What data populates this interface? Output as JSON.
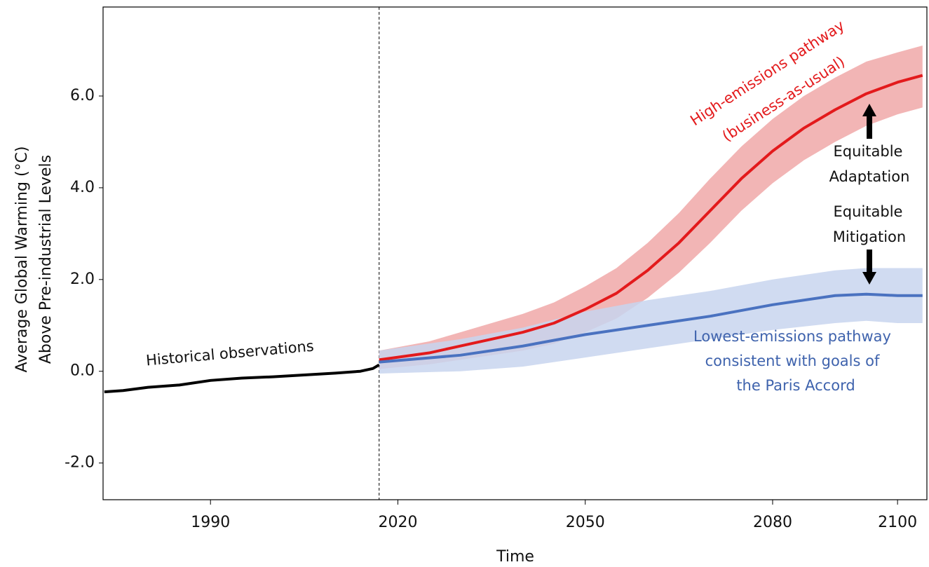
{
  "chart_data": {
    "type": "line",
    "xlabel": "Time",
    "ylabel": [
      "Average Global Warming (°C)",
      "Above Pre-industrial Levels"
    ],
    "xlim": [
      1972.8,
      2104.7
    ],
    "ylim": [
      -2.8,
      7.94
    ],
    "xticks": [
      1990,
      2020,
      2050,
      2080,
      2100
    ],
    "yticks": [
      {
        "value": -2,
        "label": "-2.0"
      },
      {
        "value": 0,
        "label": "0.0"
      },
      {
        "value": 2,
        "label": "2.0"
      },
      {
        "value": 4,
        "label": "4.0"
      },
      {
        "value": 6,
        "label": "6.0"
      }
    ],
    "vline": 2017,
    "series": [
      {
        "color": "#000000",
        "x": [
          1973,
          1976,
          1980,
          1985,
          1990,
          1995,
          2000,
          2005,
          2010,
          2014,
          2016,
          2017
        ],
        "values": [
          -0.45,
          -0.42,
          -0.35,
          -0.3,
          -0.2,
          -0.15,
          -0.12,
          -0.08,
          -0.04,
          0.0,
          0.06,
          0.14
        ]
      },
      {
        "color": "#e31a1c",
        "band_color": "#f0a8a8",
        "x": [
          2017,
          2025,
          2030,
          2035,
          2040,
          2045,
          2050,
          2055,
          2060,
          2065,
          2070,
          2075,
          2080,
          2085,
          2090,
          2095,
          2100,
          2104
        ],
        "values": [
          0.25,
          0.4,
          0.55,
          0.7,
          0.85,
          1.05,
          1.35,
          1.7,
          2.2,
          2.8,
          3.5,
          4.2,
          4.8,
          5.3,
          5.7,
          6.05,
          6.3,
          6.45
        ],
        "lower": [
          0.05,
          0.15,
          0.25,
          0.35,
          0.45,
          0.6,
          0.85,
          1.15,
          1.6,
          2.15,
          2.8,
          3.5,
          4.1,
          4.6,
          5.0,
          5.35,
          5.6,
          5.75
        ],
        "upper": [
          0.45,
          0.65,
          0.85,
          1.05,
          1.25,
          1.5,
          1.85,
          2.25,
          2.8,
          3.45,
          4.2,
          4.9,
          5.5,
          6.0,
          6.4,
          6.75,
          6.95,
          7.1
        ]
      },
      {
        "color": "#4a72c0",
        "band_color": "#c8d5ef",
        "x": [
          2017,
          2030,
          2040,
          2050,
          2060,
          2070,
          2080,
          2090,
          2095,
          2100,
          2104
        ],
        "values": [
          0.2,
          0.35,
          0.55,
          0.8,
          1.0,
          1.2,
          1.45,
          1.65,
          1.68,
          1.65,
          1.65
        ],
        "lower": [
          -0.05,
          0.0,
          0.1,
          0.3,
          0.5,
          0.7,
          0.9,
          1.05,
          1.1,
          1.05,
          1.05
        ],
        "upper": [
          0.45,
          0.7,
          0.95,
          1.3,
          1.55,
          1.75,
          2.0,
          2.2,
          2.25,
          2.25,
          2.25
        ]
      }
    ],
    "annotations": [
      "Historical observations",
      "High-emissions pathway",
      "(business-as-usual)",
      "Equitable",
      "Adaptation",
      "Equitable",
      "Mitigation",
      "Lowest-emissions pathway",
      "consistent with goals of",
      "the Paris Accord"
    ]
  }
}
